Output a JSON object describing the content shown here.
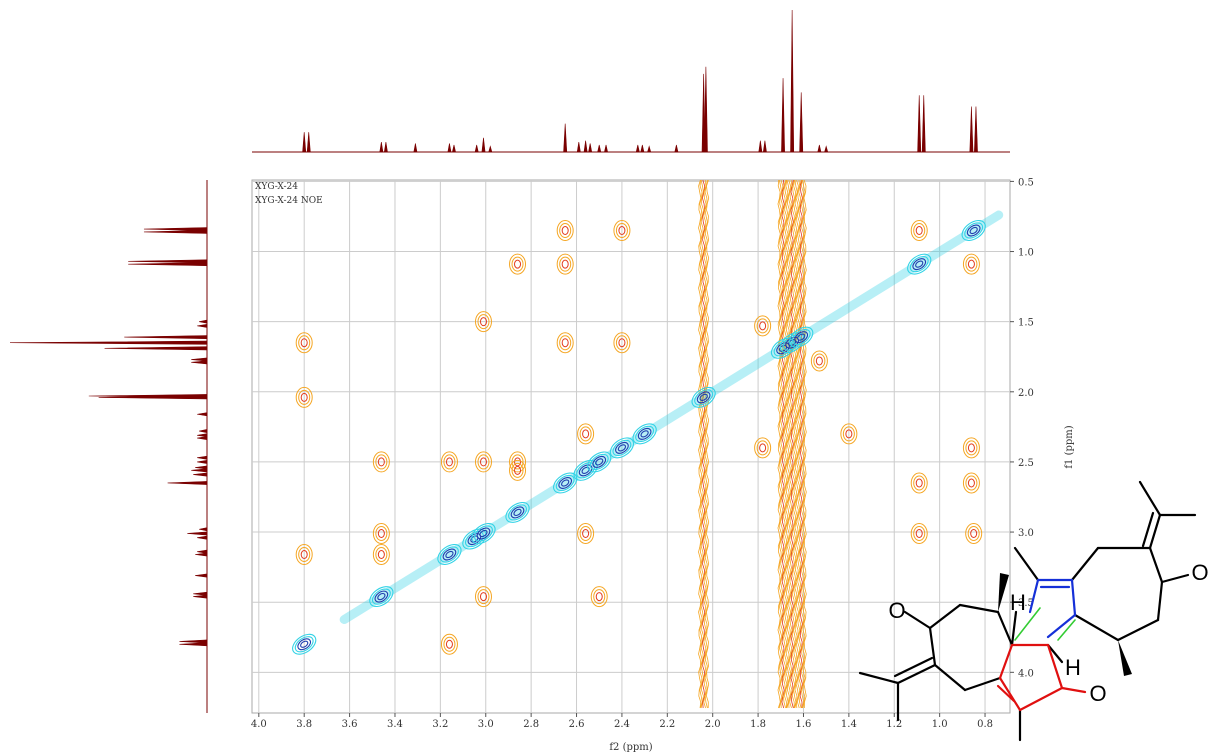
{
  "chart_data": {
    "type": "noesy",
    "annotations": [
      "XYG-X-24",
      "XYG-X-24 NOE"
    ],
    "x_label": "f2 (ppm)",
    "y_label": "f1 (ppm)",
    "xlim": [
      4.03,
      0.69
    ],
    "ylim": [
      0.49,
      4.29
    ],
    "xticks": [
      {
        "value": 4,
        "label": "4.0"
      },
      3.8,
      3.6,
      3.4,
      3.2,
      {
        "value": 3,
        "label": "3.0"
      },
      2.8,
      2.6,
      2.4,
      2.2,
      {
        "value": 2,
        "label": "2.0"
      },
      1.8,
      1.6,
      1.4,
      1.2,
      {
        "value": 1,
        "label": "1.0"
      },
      0.8
    ],
    "yticks": [
      0.5,
      {
        "value": 1,
        "label": "1.0"
      },
      1.5,
      {
        "value": 2,
        "label": "2.0"
      },
      2.5,
      {
        "value": 3,
        "label": "3.0"
      },
      3.5,
      {
        "value": 4,
        "label": "4.0"
      }
    ],
    "grid": true,
    "spectrum_color": "#7a0000",
    "diagonal_color": "#33d3e6",
    "diagonal_core_color": "#1f3fae",
    "cross_color": "#f5a623",
    "cross_core_color": "#e23b1e",
    "spectrum": {
      "ppm": [
        3.8,
        3.78,
        3.46,
        3.44,
        3.31,
        3.16,
        3.14,
        3.04,
        3.01,
        2.98,
        2.65,
        2.59,
        2.56,
        2.54,
        2.5,
        2.47,
        2.33,
        2.31,
        2.28,
        2.16,
        2.04,
        2.03,
        1.79,
        1.77,
        1.69,
        1.65,
        1.61,
        1.53,
        1.5,
        1.09,
        1.07,
        0.86,
        0.84
      ],
      "intensity": [
        14,
        14,
        7,
        7,
        6,
        6,
        5,
        5,
        10,
        4,
        20,
        7,
        8,
        6,
        5,
        5,
        5,
        5,
        4,
        5,
        55,
        60,
        8,
        8,
        52,
        100,
        42,
        5,
        4,
        40,
        40,
        32,
        32
      ]
    },
    "diagonal_peaks": [
      3.8,
      3.46,
      3.16,
      3.05,
      3.01,
      2.86,
      2.65,
      2.56,
      2.5,
      2.4,
      2.3,
      2.04,
      1.69,
      1.65,
      1.61,
      1.09,
      0.85
    ],
    "noise_columns": [
      2.04,
      1.69,
      1.65,
      1.61
    ],
    "cross_peaks": {
      "x": [
        3.8,
        3.8,
        3.8,
        3.46,
        3.46,
        3.46,
        3.16,
        3.16,
        3.01,
        3.01,
        3.01,
        2.86,
        2.86,
        2.65,
        2.65,
        2.65,
        2.56,
        2.56,
        2.5,
        2.4,
        2.4,
        2.86,
        1.78,
        1.78,
        1.53,
        1.4,
        1.09,
        1.09,
        1.09,
        0.86,
        0.86,
        0.86,
        0.85
      ],
      "y": [
        1.65,
        2.04,
        3.16,
        2.5,
        3.01,
        3.16,
        2.5,
        3.8,
        2.5,
        3.46,
        1.5,
        1.09,
        2.5,
        0.85,
        1.09,
        1.65,
        2.3,
        3.01,
        3.46,
        1.65,
        0.85,
        2.56,
        1.53,
        2.4,
        1.78,
        2.3,
        0.85,
        2.65,
        3.01,
        1.09,
        2.4,
        2.65,
        3.01
      ]
    }
  },
  "molecule": {
    "atoms": [
      "O",
      "O",
      "O",
      "H",
      "H"
    ]
  }
}
